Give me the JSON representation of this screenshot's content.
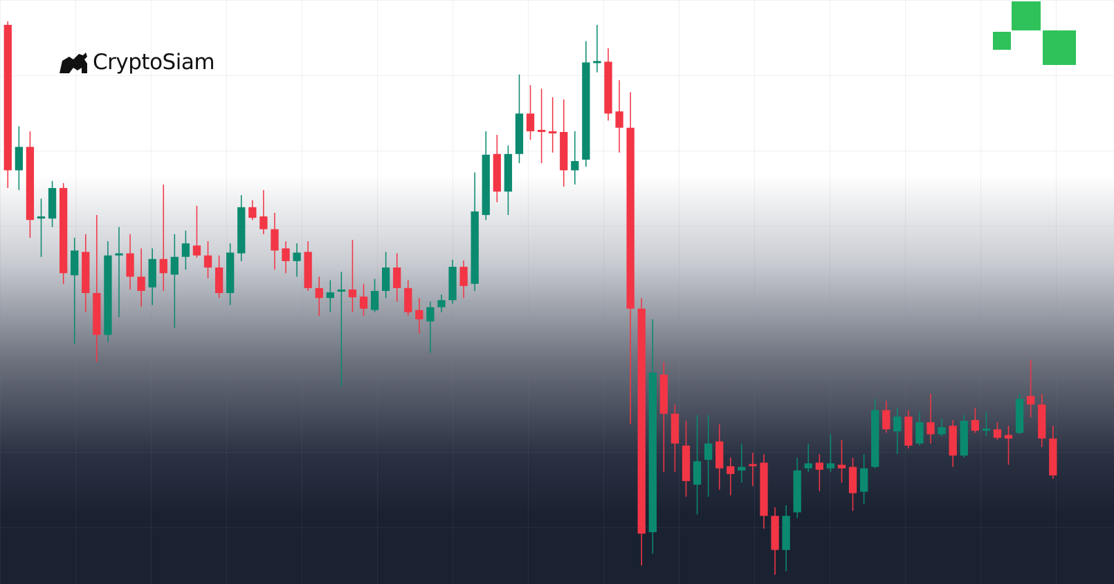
{
  "brand": "CryptoSiam",
  "chart_data": {
    "type": "candlestick",
    "up_color": "#0b8a70",
    "down_color": "#f23645",
    "ylim": [
      0,
      823
    ],
    "open": [
      788,
      583,
      616,
      515,
      515,
      558,
      435,
      468,
      410,
      351,
      463,
      466,
      433,
      418,
      458,
      436,
      461,
      477,
      463,
      446,
      410,
      466,
      531,
      518,
      500,
      473,
      455,
      468,
      417,
      403,
      412,
      415,
      405,
      386,
      413,
      446,
      417,
      386,
      370,
      390,
      400,
      447,
      423,
      520,
      606,
      553,
      606,
      663,
      640,
      638,
      637,
      583,
      598,
      734,
      736,
      666,
      643,
      388,
      73,
      295,
      240,
      195,
      140,
      175,
      201,
      166,
      160,
      169,
      171,
      96,
      48,
      101,
      163,
      171,
      163,
      168,
      165,
      130,
      165,
      245,
      215,
      236,
      198,
      228,
      211,
      223,
      181,
      231,
      216,
      218,
      210,
      213,
      265,
      253,
      205
    ],
    "high": [
      793,
      645,
      638,
      543,
      568,
      565,
      488,
      493,
      520,
      483,
      503,
      493,
      473,
      473,
      563,
      493,
      498,
      533,
      483,
      463,
      480,
      548,
      541,
      555,
      523,
      483,
      480,
      483,
      433,
      428,
      440,
      485,
      423,
      430,
      468,
      466,
      428,
      403,
      398,
      408,
      457,
      456,
      580,
      638,
      633,
      618,
      718,
      703,
      698,
      686,
      683,
      638,
      765,
      788,
      755,
      710,
      693,
      403,
      373,
      313,
      253,
      230,
      238,
      238,
      225,
      178,
      198,
      185,
      183,
      108,
      111,
      178,
      198,
      183,
      211,
      203,
      178,
      183,
      261,
      258,
      248,
      245,
      243,
      268,
      233,
      231,
      238,
      248,
      243,
      228,
      223,
      268,
      316,
      268,
      223
    ],
    "low": [
      558,
      555,
      488,
      461,
      503,
      423,
      338,
      383,
      313,
      341,
      376,
      415,
      391,
      393,
      413,
      361,
      443,
      460,
      431,
      403,
      393,
      455,
      513,
      493,
      443,
      438,
      433,
      413,
      378,
      383,
      278,
      383,
      378,
      383,
      403,
      398,
      378,
      353,
      326,
      383,
      395,
      403,
      413,
      513,
      538,
      520,
      593,
      626,
      593,
      608,
      560,
      563,
      588,
      721,
      653,
      608,
      225,
      26,
      43,
      158,
      158,
      123,
      98,
      123,
      133,
      125,
      143,
      138,
      78,
      13,
      18,
      93,
      158,
      131,
      158,
      143,
      103,
      113,
      163,
      213,
      183,
      191,
      195,
      198,
      208,
      165,
      178,
      213,
      208,
      203,
      168,
      211,
      235,
      193,
      148
    ],
    "close": [
      583,
      616,
      513,
      518,
      558,
      438,
      470,
      410,
      351,
      463,
      466,
      433,
      413,
      458,
      438,
      461,
      480,
      463,
      446,
      410,
      467,
      531,
      516,
      500,
      470,
      455,
      467,
      417,
      403,
      411,
      415,
      404,
      388,
      413,
      446,
      417,
      383,
      373,
      390,
      400,
      447,
      420,
      525,
      605,
      553,
      606,
      663,
      638,
      637,
      635,
      583,
      596,
      735,
      737,
      663,
      643,
      388,
      71,
      298,
      240,
      198,
      145,
      173,
      198,
      163,
      155,
      165,
      166,
      96,
      48,
      96,
      160,
      170,
      161,
      170,
      163,
      128,
      163,
      245,
      218,
      236,
      195,
      228,
      211,
      221,
      181,
      230,
      216,
      219,
      206,
      205,
      261,
      253,
      205,
      153
    ]
  }
}
